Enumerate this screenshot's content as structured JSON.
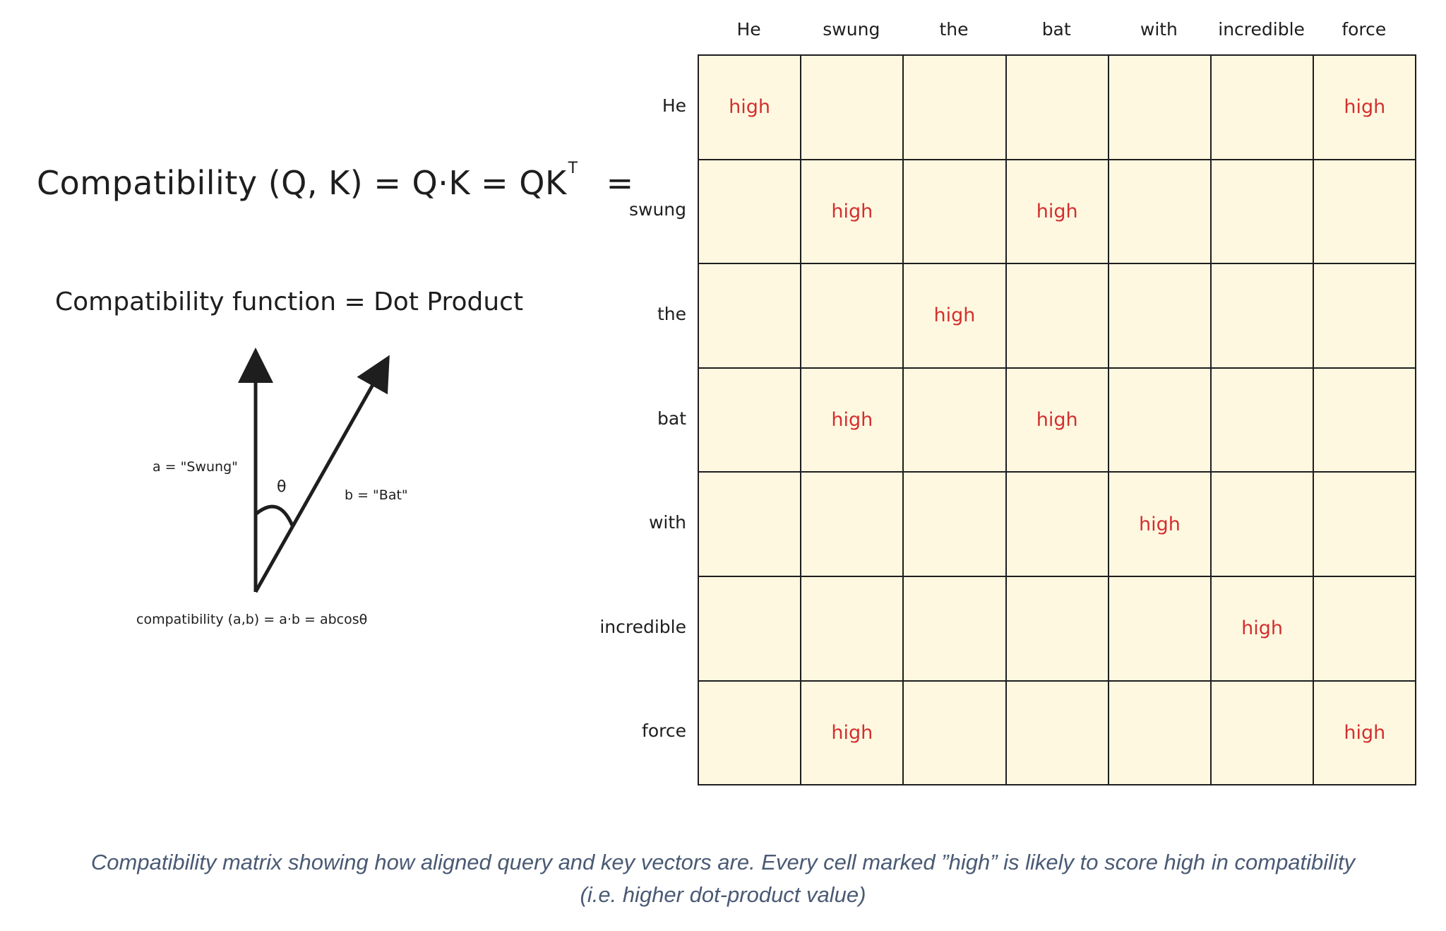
{
  "equation": {
    "left": "Compatibility (Q, K) =  Q·K = QK",
    "superscript": "T",
    "tail": "="
  },
  "function_title": "Compatibility function = Dot Product",
  "vector_diagram": {
    "label_a": "a = \"Swung\"",
    "label_b": "b = \"Bat\"",
    "angle_label": "θ",
    "formula": "compatibility (a,b) = a·b = abcosθ"
  },
  "matrix": {
    "columns": [
      "He",
      "swung",
      "the",
      "bat",
      "with",
      "incredible",
      "force"
    ],
    "rows": [
      "He",
      "swung",
      "the",
      "bat",
      "with",
      "incredible",
      "force"
    ],
    "high_label": "high",
    "cells": [
      [
        "high",
        "",
        "",
        "",
        "",
        "",
        "high"
      ],
      [
        "",
        "high",
        "",
        "high",
        "",
        "",
        ""
      ],
      [
        "",
        "",
        "high",
        "",
        "",
        "",
        ""
      ],
      [
        "",
        "high",
        "",
        "high",
        "",
        "",
        ""
      ],
      [
        "",
        "",
        "",
        "",
        "high",
        "",
        ""
      ],
      [
        "",
        "",
        "",
        "",
        "",
        "high",
        ""
      ],
      [
        "",
        "high",
        "",
        "",
        "",
        "",
        "high"
      ]
    ],
    "cell_color": "#fff8e1",
    "high_color": "#d32f2f"
  },
  "caption": {
    "line1": "Compatibility matrix showing how aligned query and key vectors are. Every cell marked ”high” is likely to score high in compatibility",
    "line2": "(i.e. higher dot-product value)"
  }
}
